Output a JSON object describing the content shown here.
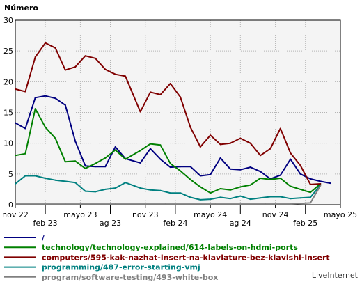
{
  "chart_data": {
    "type": "line",
    "ylabel": "Número",
    "ylim": [
      0,
      30
    ],
    "yticks": [
      0,
      5,
      10,
      15,
      20,
      25,
      30
    ],
    "grid": true,
    "legend_position": "bottom",
    "x_tick_labels": [
      {
        "label": "nov 22",
        "index": 0,
        "row": 1
      },
      {
        "label": "feb 23",
        "index": 6,
        "row": 2
      },
      {
        "label": "mayo 23",
        "index": 13,
        "row": 1
      },
      {
        "label": "ag 23",
        "index": 19,
        "row": 2
      },
      {
        "label": "nov 23",
        "index": 26,
        "row": 1
      },
      {
        "label": "feb 24",
        "index": 32,
        "row": 2
      },
      {
        "label": "mayo 24",
        "index": 39,
        "row": 1
      },
      {
        "label": "ag 24",
        "index": 45,
        "row": 2
      },
      {
        "label": "nov 24",
        "index": 52,
        "row": 1
      },
      {
        "label": "feb 25",
        "index": 58,
        "row": 2
      },
      {
        "label": "mayo 25",
        "index": 65,
        "row": 1
      }
    ],
    "x_count": 66,
    "series": [
      {
        "name": "/",
        "color": "#000080",
        "values": [
          {
            "i": 0,
            "v": 13.3
          },
          {
            "i": 2,
            "v": 12.4
          },
          {
            "i": 4,
            "v": 17.4
          },
          {
            "i": 6,
            "v": 17.7
          },
          {
            "i": 8,
            "v": 17.3
          },
          {
            "i": 10,
            "v": 16.2
          },
          {
            "i": 12,
            "v": 10.3
          },
          {
            "i": 14,
            "v": 6.3
          },
          {
            "i": 16,
            "v": 6.2
          },
          {
            "i": 18,
            "v": 6.2
          },
          {
            "i": 20,
            "v": 9.4
          },
          {
            "i": 22,
            "v": 7.5
          },
          {
            "i": 25,
            "v": 6.8
          },
          {
            "i": 27,
            "v": 9.1
          },
          {
            "i": 29,
            "v": 7.4
          },
          {
            "i": 31,
            "v": 6.1
          },
          {
            "i": 33,
            "v": 6.2
          },
          {
            "i": 35,
            "v": 6.2
          },
          {
            "i": 37,
            "v": 4.7
          },
          {
            "i": 39,
            "v": 4.9
          },
          {
            "i": 41,
            "v": 7.6
          },
          {
            "i": 43,
            "v": 5.8
          },
          {
            "i": 45,
            "v": 5.7
          },
          {
            "i": 47,
            "v": 6.1
          },
          {
            "i": 49,
            "v": 5.4
          },
          {
            "i": 51,
            "v": 4.2
          },
          {
            "i": 53,
            "v": 4.8
          },
          {
            "i": 55,
            "v": 7.4
          },
          {
            "i": 57,
            "v": 5.0
          },
          {
            "i": 59,
            "v": 4.2
          },
          {
            "i": 61,
            "v": 3.8
          },
          {
            "i": 63,
            "v": 3.5
          }
        ]
      },
      {
        "name": "technology/technology-explained/614-labels-on-hdmi-ports",
        "color": "#008000",
        "values": [
          {
            "i": 0,
            "v": 8.0
          },
          {
            "i": 2,
            "v": 8.3
          },
          {
            "i": 4,
            "v": 15.6
          },
          {
            "i": 6,
            "v": 12.6
          },
          {
            "i": 8,
            "v": 10.8
          },
          {
            "i": 10,
            "v": 7.0
          },
          {
            "i": 12,
            "v": 7.1
          },
          {
            "i": 14,
            "v": 5.9
          },
          {
            "i": 16,
            "v": 6.7
          },
          {
            "i": 18,
            "v": 7.6
          },
          {
            "i": 20,
            "v": 8.9
          },
          {
            "i": 22,
            "v": 7.4
          },
          {
            "i": 25,
            "v": 8.8
          },
          {
            "i": 27,
            "v": 9.9
          },
          {
            "i": 29,
            "v": 9.7
          },
          {
            "i": 31,
            "v": 6.7
          },
          {
            "i": 33,
            "v": 5.5
          },
          {
            "i": 35,
            "v": 4.1
          },
          {
            "i": 37,
            "v": 2.9
          },
          {
            "i": 39,
            "v": 1.9
          },
          {
            "i": 41,
            "v": 2.6
          },
          {
            "i": 43,
            "v": 2.4
          },
          {
            "i": 45,
            "v": 2.9
          },
          {
            "i": 47,
            "v": 3.2
          },
          {
            "i": 49,
            "v": 4.3
          },
          {
            "i": 51,
            "v": 4.1
          },
          {
            "i": 53,
            "v": 4.3
          },
          {
            "i": 55,
            "v": 3.0
          },
          {
            "i": 57,
            "v": 2.5
          },
          {
            "i": 59,
            "v": 2.0
          },
          {
            "i": 61,
            "v": 3.4
          }
        ]
      },
      {
        "name": "computers/595-kak-nazhat-insert-na-klaviature-bez-klavishi-insert",
        "color": "#800000",
        "values": [
          {
            "i": 0,
            "v": 18.8
          },
          {
            "i": 2,
            "v": 18.4
          },
          {
            "i": 4,
            "v": 24.0
          },
          {
            "i": 6,
            "v": 26.3
          },
          {
            "i": 8,
            "v": 25.5
          },
          {
            "i": 10,
            "v": 21.9
          },
          {
            "i": 12,
            "v": 22.4
          },
          {
            "i": 14,
            "v": 24.2
          },
          {
            "i": 16,
            "v": 23.8
          },
          {
            "i": 18,
            "v": 22.0
          },
          {
            "i": 20,
            "v": 21.2
          },
          {
            "i": 22,
            "v": 20.9
          },
          {
            "i": 25,
            "v": 15.1
          },
          {
            "i": 27,
            "v": 18.3
          },
          {
            "i": 29,
            "v": 17.9
          },
          {
            "i": 31,
            "v": 19.7
          },
          {
            "i": 33,
            "v": 17.5
          },
          {
            "i": 35,
            "v": 12.6
          },
          {
            "i": 37,
            "v": 9.4
          },
          {
            "i": 39,
            "v": 11.3
          },
          {
            "i": 41,
            "v": 9.8
          },
          {
            "i": 43,
            "v": 10.0
          },
          {
            "i": 45,
            "v": 10.8
          },
          {
            "i": 47,
            "v": 10.0
          },
          {
            "i": 49,
            "v": 8.0
          },
          {
            "i": 51,
            "v": 9.1
          },
          {
            "i": 53,
            "v": 12.4
          },
          {
            "i": 55,
            "v": 8.4
          },
          {
            "i": 57,
            "v": 6.4
          },
          {
            "i": 59,
            "v": 3.3
          },
          {
            "i": 61,
            "v": 3.4
          }
        ]
      },
      {
        "name": "programming/487-error-starting-vmj",
        "color": "#008080",
        "values": [
          {
            "i": 0,
            "v": 3.4
          },
          {
            "i": 2,
            "v": 4.7
          },
          {
            "i": 4,
            "v": 4.7
          },
          {
            "i": 6,
            "v": 4.3
          },
          {
            "i": 8,
            "v": 4.0
          },
          {
            "i": 10,
            "v": 3.8
          },
          {
            "i": 12,
            "v": 3.6
          },
          {
            "i": 14,
            "v": 2.2
          },
          {
            "i": 16,
            "v": 2.1
          },
          {
            "i": 18,
            "v": 2.5
          },
          {
            "i": 20,
            "v": 2.7
          },
          {
            "i": 22,
            "v": 3.6
          },
          {
            "i": 25,
            "v": 2.7
          },
          {
            "i": 27,
            "v": 2.4
          },
          {
            "i": 29,
            "v": 2.3
          },
          {
            "i": 31,
            "v": 1.9
          },
          {
            "i": 33,
            "v": 1.9
          },
          {
            "i": 35,
            "v": 1.2
          },
          {
            "i": 37,
            "v": 0.8
          },
          {
            "i": 39,
            "v": 0.9
          },
          {
            "i": 41,
            "v": 1.2
          },
          {
            "i": 43,
            "v": 1.0
          },
          {
            "i": 45,
            "v": 1.4
          },
          {
            "i": 47,
            "v": 0.9
          },
          {
            "i": 49,
            "v": 1.1
          },
          {
            "i": 51,
            "v": 1.3
          },
          {
            "i": 53,
            "v": 1.3
          },
          {
            "i": 55,
            "v": 1.0
          },
          {
            "i": 57,
            "v": 1.1
          },
          {
            "i": 59,
            "v": 1.2
          },
          {
            "i": 61,
            "v": 3.2
          }
        ]
      },
      {
        "name": "program/software-testing/493-white-box",
        "color": "#808080",
        "values": [
          {
            "i": 0,
            "v": 0.1
          },
          {
            "i": 10,
            "v": 0.1
          },
          {
            "i": 20,
            "v": 0.1
          },
          {
            "i": 30,
            "v": 0.1
          },
          {
            "i": 40,
            "v": 0.1
          },
          {
            "i": 50,
            "v": 0.1
          },
          {
            "i": 55,
            "v": 0.1
          },
          {
            "i": 59,
            "v": 0.3
          },
          {
            "i": 61,
            "v": 3.1
          }
        ]
      }
    ]
  },
  "credit": "LiveInternet"
}
